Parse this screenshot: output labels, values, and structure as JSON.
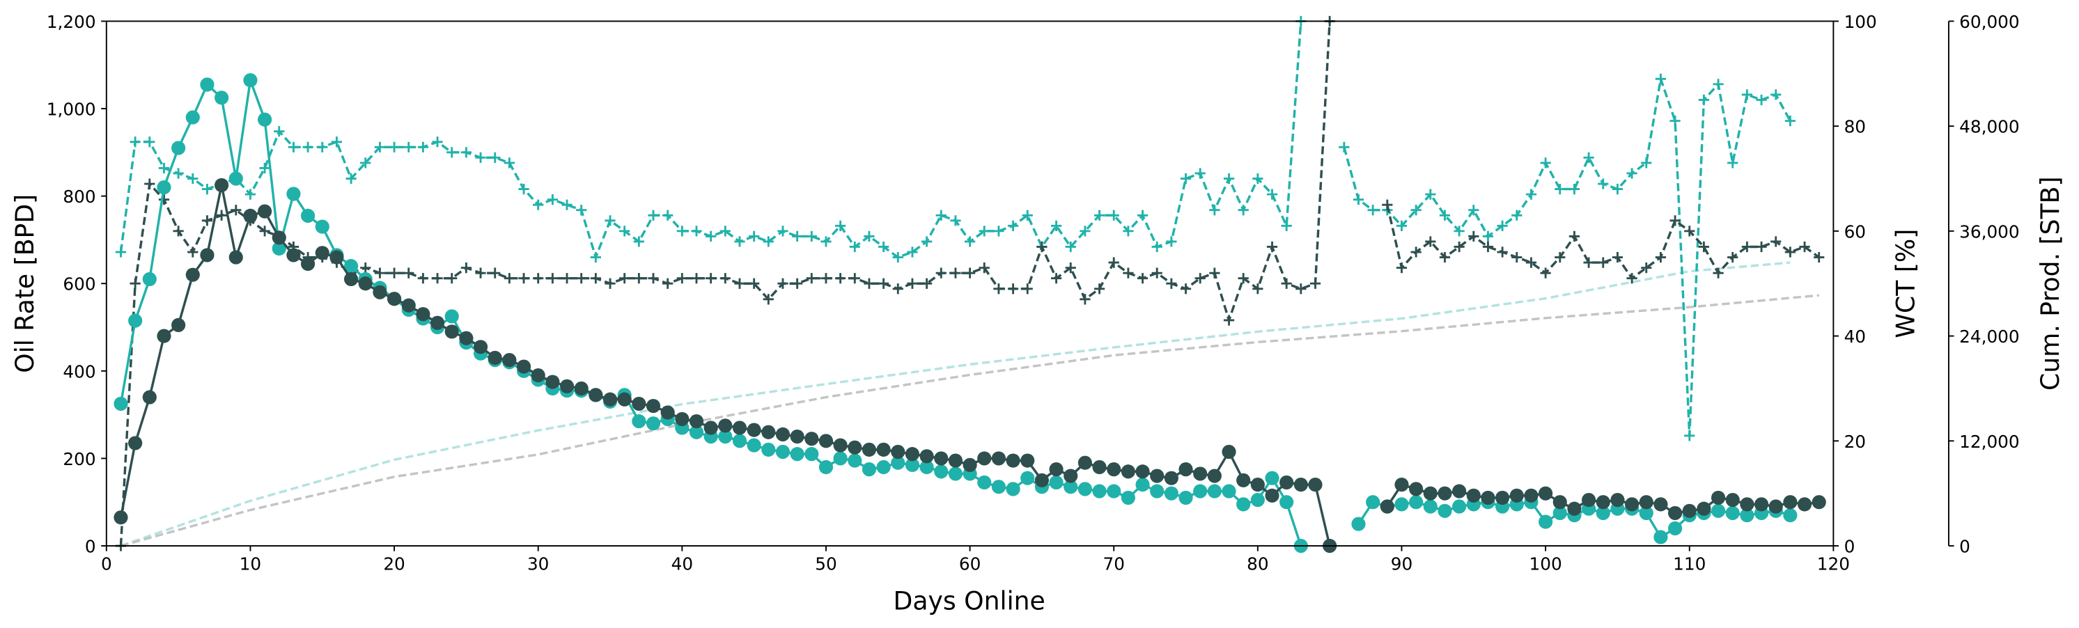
{
  "chart_data": {
    "type": "line",
    "xlabel": "Days Online",
    "ylabel": "Oil Rate [BPD]",
    "y2label": "WCT [%]",
    "y3label": "Cum. Prod. [STB]",
    "x": [
      1,
      2,
      3,
      4,
      5,
      6,
      7,
      8,
      9,
      10,
      11,
      12,
      13,
      14,
      15,
      16,
      17,
      18,
      19,
      20,
      21,
      22,
      23,
      24,
      25,
      26,
      27,
      28,
      29,
      30,
      31,
      32,
      33,
      34,
      35,
      36,
      37,
      38,
      39,
      40,
      41,
      42,
      43,
      44,
      45,
      46,
      47,
      48,
      49,
      50,
      51,
      52,
      53,
      54,
      55,
      56,
      57,
      58,
      59,
      60,
      61,
      62,
      63,
      64,
      65,
      66,
      67,
      68,
      69,
      70,
      71,
      72,
      73,
      74,
      75,
      76,
      77,
      78,
      79,
      80,
      81,
      82,
      83,
      84,
      85,
      86,
      87,
      88,
      89,
      90,
      91,
      92,
      93,
      94,
      95,
      96,
      97,
      98,
      99,
      100,
      101,
      102,
      103,
      104,
      105,
      106,
      107,
      108,
      109,
      110,
      111,
      112,
      113,
      114,
      115,
      116,
      117,
      118,
      119
    ],
    "xlim": [
      0,
      120
    ],
    "xticks": [
      0,
      10,
      20,
      30,
      40,
      50,
      60,
      70,
      80,
      90,
      100,
      110,
      120
    ],
    "ylim": [
      0,
      1200
    ],
    "yticks": [
      0,
      200,
      400,
      600,
      800,
      {
        "value": 1000,
        "label": "1,000"
      },
      {
        "value": 1200,
        "label": "1,200"
      }
    ],
    "y2lim": [
      0,
      100
    ],
    "y2ticks": [
      0,
      20,
      40,
      60,
      80,
      100
    ],
    "y3lim": [
      0,
      60000
    ],
    "y3ticks": [
      0,
      {
        "value": 12000,
        "label": "12,000"
      },
      {
        "value": 24000,
        "label": "24,000"
      },
      {
        "value": 36000,
        "label": "36,000"
      },
      {
        "value": 48000,
        "label": "48,000"
      },
      {
        "value": 60000,
        "label": "60,000"
      }
    ],
    "grid": false,
    "series": [
      {
        "color": "#20b2aa",
        "axis": "y",
        "linestyle": "solid",
        "marker": "o",
        "values": [
          325,
          515,
          610,
          820,
          910,
          980,
          1055,
          1025,
          840,
          1065,
          975,
          680,
          805,
          755,
          730,
          665,
          640,
          610,
          590,
          565,
          540,
          520,
          500,
          525,
          465,
          440,
          425,
          420,
          400,
          380,
          360,
          355,
          355,
          345,
          330,
          345,
          285,
          280,
          290,
          270,
          260,
          250,
          250,
          240,
          230,
          220,
          215,
          210,
          210,
          180,
          200,
          195,
          175,
          180,
          190,
          185,
          180,
          170,
          165,
          165,
          145,
          135,
          130,
          155,
          135,
          145,
          135,
          130,
          125,
          125,
          110,
          140,
          125,
          120,
          110,
          125,
          125,
          125,
          95,
          105,
          155,
          100,
          0,
          null,
          null,
          null,
          50,
          100,
          90,
          95,
          100,
          90,
          80,
          90,
          95,
          100,
          90,
          95,
          100,
          55,
          75,
          70,
          85,
          75,
          85,
          85,
          75,
          20,
          40,
          70,
          75,
          80,
          75,
          70,
          75,
          80,
          70,
          null,
          null
        ]
      },
      {
        "color": "#2f4f4f",
        "axis": "y",
        "linestyle": "solid",
        "marker": "o",
        "values": [
          65,
          235,
          340,
          480,
          505,
          620,
          665,
          825,
          660,
          755,
          765,
          705,
          665,
          645,
          670,
          660,
          610,
          600,
          580,
          565,
          550,
          530,
          510,
          490,
          475,
          455,
          430,
          425,
          410,
          390,
          375,
          365,
          360,
          345,
          335,
          335,
          325,
          320,
          305,
          290,
          285,
          270,
          275,
          270,
          265,
          260,
          255,
          250,
          245,
          240,
          230,
          225,
          220,
          220,
          215,
          210,
          205,
          200,
          195,
          185,
          200,
          200,
          195,
          195,
          150,
          175,
          160,
          190,
          180,
          175,
          170,
          170,
          160,
          155,
          175,
          165,
          160,
          215,
          150,
          140,
          115,
          145,
          140,
          140,
          0,
          null,
          null,
          null,
          90,
          140,
          130,
          120,
          120,
          125,
          115,
          110,
          110,
          115,
          115,
          120,
          100,
          85,
          105,
          100,
          105,
          95,
          100,
          95,
          75,
          80,
          85,
          110,
          105,
          95,
          95,
          90,
          100,
          95,
          100
        ]
      },
      {
        "color": "#20b2aa",
        "axis": "y2",
        "linestyle": "dashed",
        "marker": "+",
        "values": [
          56,
          77,
          77,
          72,
          71,
          70,
          68,
          69,
          70,
          67,
          72,
          79,
          76,
          76,
          76,
          77,
          70,
          73,
          76,
          76,
          76,
          76,
          77,
          75,
          75,
          74,
          74,
          73,
          68,
          65,
          66,
          65,
          64,
          55,
          62,
          60,
          58,
          63,
          63,
          60,
          60,
          59,
          60,
          58,
          59,
          58,
          60,
          59,
          59,
          58,
          61,
          57,
          59,
          57,
          55,
          56,
          58,
          63,
          62,
          58,
          60,
          60,
          61,
          63,
          57,
          61,
          57,
          60,
          63,
          63,
          60,
          63,
          57,
          58,
          70,
          71,
          64,
          70,
          64,
          70,
          67,
          61,
          100,
          null,
          null,
          76,
          66,
          64,
          64,
          61,
          64,
          67,
          63,
          60,
          64,
          59,
          61,
          63,
          67,
          73,
          68,
          68,
          74,
          69,
          68,
          71,
          73,
          89,
          81,
          21,
          85,
          88,
          73,
          86,
          85,
          86,
          81,
          null,
          null
        ]
      },
      {
        "color": "#2f4f4f",
        "axis": "y2",
        "linestyle": "dashed",
        "marker": "+",
        "values": [
          0,
          50,
          69,
          66,
          60,
          56,
          62,
          63,
          64,
          62,
          60,
          59,
          57,
          55,
          55,
          54,
          52,
          53,
          52,
          52,
          52,
          51,
          51,
          51,
          53,
          52,
          52,
          51,
          51,
          51,
          51,
          51,
          51,
          51,
          50,
          51,
          51,
          51,
          50,
          51,
          51,
          51,
          51,
          50,
          50,
          47,
          50,
          50,
          51,
          51,
          51,
          51,
          50,
          50,
          49,
          50,
          50,
          52,
          52,
          52,
          53,
          49,
          49,
          49,
          57,
          51,
          53,
          47,
          49,
          54,
          52,
          51,
          52,
          50,
          49,
          51,
          52,
          43,
          51,
          49,
          57,
          50,
          49,
          50,
          100,
          null,
          null,
          null,
          65,
          53,
          56,
          58,
          55,
          57,
          59,
          57,
          56,
          55,
          54,
          52,
          55,
          59,
          54,
          54,
          55,
          51,
          53,
          55,
          62,
          60,
          57,
          52,
          55,
          57,
          57,
          58,
          56,
          57,
          55
        ]
      },
      {
        "color": "#b3e3e0",
        "axis": "y3",
        "linestyle": "dashed",
        "marker": "none",
        "x": [
          1,
          10,
          20,
          30,
          40,
          50,
          60,
          70,
          80,
          90,
          100,
          110,
          117
        ],
        "values": [
          0,
          5150,
          9850,
          13200,
          16200,
          18500,
          20750,
          22700,
          24500,
          26000,
          28300,
          31400,
          32400
        ]
      },
      {
        "color": "#c4c4c4",
        "axis": "y3",
        "linestyle": "dashed",
        "marker": "none",
        "x": [
          1,
          10,
          20,
          30,
          40,
          50,
          60,
          70,
          80,
          90,
          100,
          110,
          119
        ],
        "values": [
          0,
          4100,
          7900,
          10450,
          13900,
          17000,
          19550,
          21800,
          23300,
          24550,
          26050,
          27300,
          28650
        ]
      }
    ]
  }
}
